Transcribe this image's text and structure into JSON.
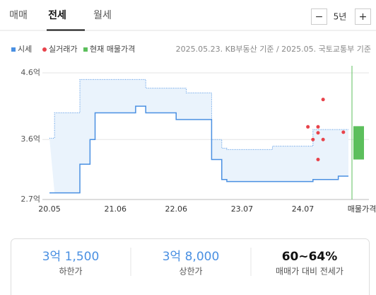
{
  "tabs": [
    "매매",
    "전세",
    "월세"
  ],
  "period": {
    "minus": "−",
    "label": "5년",
    "plus": "+"
  },
  "source": "2025.05.23. KB부동산 기준 / 2025.05. 국토교통부 기준",
  "chart_data": {
    "type": "line",
    "xlim": [
      "20.05",
      "25.04"
    ],
    "xticks": [
      "20.05",
      "21.06",
      "22.06",
      "23.07",
      "24.07"
    ],
    "listing_label": "매물가격",
    "ylim": [
      2.7,
      4.6
    ],
    "yticks": [
      {
        "value": 2.7,
        "label": "2.7억"
      },
      {
        "value": 3.6,
        "label": "3.6억"
      },
      {
        "value": 4.6,
        "label": "4.6억"
      }
    ],
    "grid": true,
    "series": [
      {
        "name": "시세",
        "color": "#4a90e2",
        "x": [
          "20.05",
          "20.06",
          "20.11",
          "21.01",
          "21.02",
          "21.10",
          "21.12",
          "22.06",
          "22.08",
          "23.01",
          "23.03",
          "23.04",
          "24.01",
          "24.09",
          "25.02",
          "25.04"
        ],
        "upper": [
          3.62,
          4.0,
          4.5,
          4.5,
          4.5,
          4.5,
          4.37,
          4.37,
          4.3,
          3.6,
          3.47,
          3.45,
          3.5,
          3.75,
          3.75,
          3.75
        ],
        "lower": [
          2.8,
          2.8,
          3.23,
          3.6,
          4.0,
          4.1,
          4.0,
          3.9,
          3.9,
          3.3,
          3.0,
          2.97,
          2.97,
          3.0,
          3.05,
          3.05
        ]
      },
      {
        "name": "실거래가",
        "color": "#e8434b",
        "x": [
          "24.08",
          "24.09",
          "24.10",
          "24.10",
          "24.11",
          "24.11",
          "24.10",
          "25.03"
        ],
        "values": [
          3.79,
          3.6,
          3.79,
          3.7,
          4.2,
          3.6,
          3.3,
          3.71
        ]
      },
      {
        "name": "현재 매물가격",
        "color": "#5cbf5c",
        "values": [
          3.3,
          3.8
        ]
      }
    ]
  },
  "summary": [
    {
      "value": "3억 1,500",
      "label": "하한가"
    },
    {
      "value": "3억 8,000",
      "label": "상한가"
    },
    {
      "value": "60~64%",
      "label": "매매가 대비 전세가"
    }
  ]
}
